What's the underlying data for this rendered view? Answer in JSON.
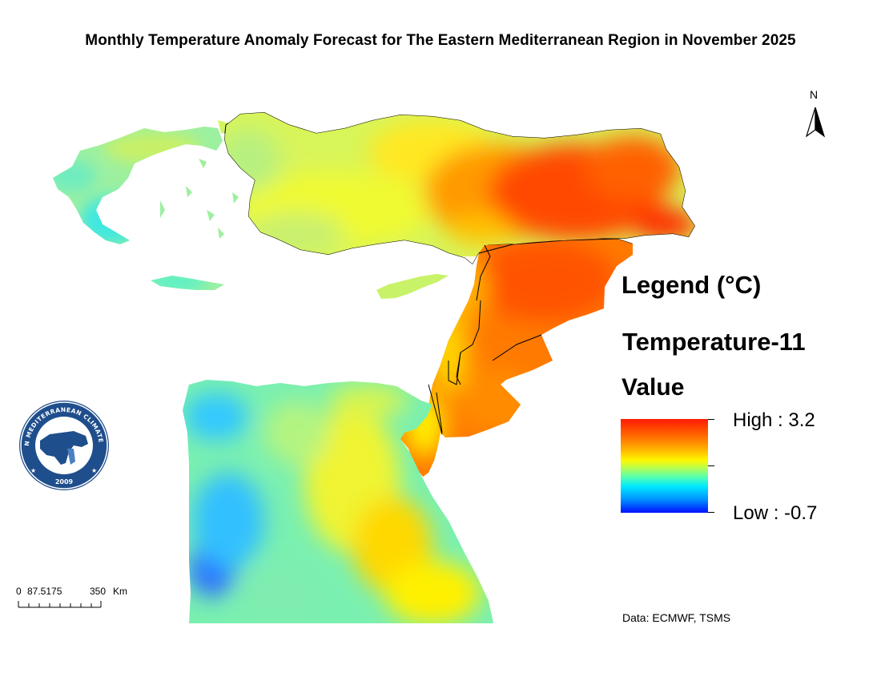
{
  "map": {
    "title": "Monthly Temperature Anomaly Forecast for The Eastern Mediterranean Region in November 2025",
    "north_label": "N",
    "regions": [
      "Greece",
      "Turkey",
      "Syria",
      "Iraq",
      "Cyprus",
      "Lebanon",
      "Israel",
      "Jordan",
      "Egypt"
    ]
  },
  "legend": {
    "title": "Legend (°C)",
    "layer": "Temperature-11",
    "field": "Value",
    "high_label": "High : 3.2",
    "low_label": "Low : -0.7",
    "high_value": 3.2,
    "low_value": -0.7,
    "colors": [
      "#ff1a00",
      "#ff6a00",
      "#ffb000",
      "#fff700",
      "#b8ff50",
      "#55ffb0",
      "#00e8ff",
      "#0090ff",
      "#0010ff"
    ]
  },
  "scale_bar": {
    "zero": "0",
    "mid": "87.5175",
    "end": "350",
    "unit": "Km"
  },
  "logo": {
    "text_arc": "EASTERN MEDITERRANEAN CLIMATE CENTRE",
    "year": "2009"
  },
  "source": "Data: ECMWF, TSMS"
}
